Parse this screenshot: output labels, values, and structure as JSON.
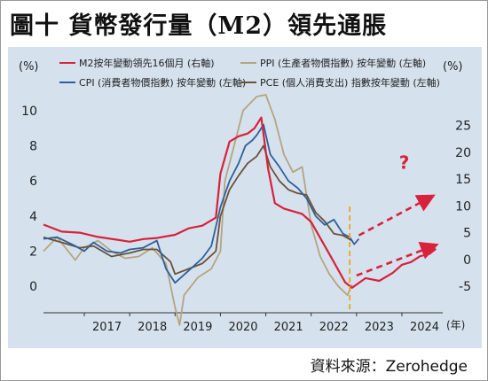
{
  "header": {
    "title": "圖十 貨幣發行量（M2）領先通脹"
  },
  "footer": {
    "source": "資料來源：Zerohedge"
  },
  "colors": {
    "panel_bg": "#d5e2ee",
    "m2": "#d8213a",
    "ppi": "#b5a47e",
    "cpi": "#2f5f9a",
    "pce": "#6b5138",
    "annotation": "#d8213a",
    "marker_line": "#f0a020"
  },
  "chart_data": {
    "type": "line",
    "left_unit": "(%)",
    "right_unit": "(%)",
    "x_unit": "(年)",
    "x_ticks": [
      "2017",
      "2018",
      "2019",
      "2020",
      "2021",
      "2022",
      "2023",
      "2024"
    ],
    "left_ticks": [
      "0",
      "2",
      "4",
      "6",
      "8",
      "10"
    ],
    "right_ticks": [
      "-5",
      "0",
      "5",
      "10",
      "15",
      "20",
      "25"
    ],
    "xlim": [
      2016.1,
      2024.9
    ],
    "ylim_left": [
      -1.3,
      11.1
    ],
    "ylim_right": [
      -9.3,
      31.4
    ],
    "legend_position": "top",
    "series": [
      {
        "name": "M2按年變動領先16個月 (右軸)",
        "axis": "right",
        "color_key": "m2",
        "x": [
          2016.1,
          2016.5,
          2016.9,
          2017.3,
          2017.7,
          2018.0,
          2018.3,
          2018.6,
          2019.0,
          2019.3,
          2019.6,
          2019.9,
          2020.0,
          2020.2,
          2020.4,
          2020.6,
          2020.75,
          2020.9,
          2021.05,
          2021.2,
          2021.4,
          2021.6,
          2021.8,
          2022.0,
          2022.2,
          2022.4,
          2022.6,
          2022.75,
          2022.9,
          2023.2,
          2023.5,
          2023.8,
          2024.0,
          2024.2,
          2024.4,
          2024.6,
          2024.75
        ],
        "y": [
          6.5,
          5.2,
          5.0,
          4.2,
          3.7,
          3.3,
          3.8,
          4.0,
          4.6,
          5.8,
          6.3,
          7.8,
          16.0,
          22.0,
          23.0,
          23.5,
          24.5,
          26.5,
          17.0,
          10.5,
          9.5,
          9.0,
          8.5,
          7.0,
          4.0,
          1.0,
          -2.0,
          -4.3,
          -5.3,
          -3.5,
          -4.0,
          -2.5,
          -1.0,
          -0.5,
          0.6,
          1.0,
          2.0
        ]
      },
      {
        "name": "PPI (生產者物價指數) 按年變動 (左軸)",
        "axis": "left",
        "color_key": "ppi",
        "x": [
          2016.1,
          2016.4,
          2016.8,
          2017.0,
          2017.3,
          2017.6,
          2017.9,
          2018.2,
          2018.5,
          2018.8,
          2019.0,
          2019.1,
          2019.2,
          2019.5,
          2019.8,
          2020.0,
          2020.1,
          2020.3,
          2020.5,
          2020.8,
          2021.0,
          2021.2,
          2021.4,
          2021.6,
          2021.8,
          2022.0,
          2022.2,
          2022.4,
          2022.6,
          2022.8,
          2022.9
        ],
        "y": [
          2.0,
          2.8,
          1.5,
          2.2,
          2.6,
          2.0,
          1.6,
          1.7,
          2.2,
          1.3,
          -1.2,
          -2.2,
          -0.5,
          0.5,
          1.0,
          2.0,
          6.0,
          8.0,
          10.0,
          10.8,
          10.9,
          9.5,
          7.5,
          6.5,
          6.8,
          3.5,
          1.7,
          0.7,
          0.0,
          -0.5,
          0.1
        ]
      },
      {
        "name": "CPI (消費者物價指數) 按年變動 (左軸)",
        "axis": "left",
        "color_key": "cpi",
        "x": [
          2016.1,
          2016.4,
          2016.8,
          2017.0,
          2017.2,
          2017.5,
          2017.8,
          2018.0,
          2018.3,
          2018.6,
          2018.8,
          2019.0,
          2019.3,
          2019.6,
          2019.8,
          2020.0,
          2020.2,
          2020.4,
          2020.55,
          2020.7,
          2020.8,
          2020.95,
          2021.1,
          2021.3,
          2021.5,
          2021.7,
          2021.9,
          2022.1,
          2022.3,
          2022.5,
          2022.7,
          2022.85,
          2022.95,
          2023.05
        ],
        "y": [
          2.7,
          2.8,
          2.3,
          2.0,
          2.5,
          2.0,
          1.9,
          2.1,
          2.2,
          2.6,
          1.0,
          0.2,
          0.9,
          1.6,
          2.3,
          4.5,
          6.0,
          7.0,
          8.0,
          8.3,
          8.6,
          9.2,
          7.5,
          6.8,
          6.0,
          5.6,
          5.0,
          4.0,
          3.5,
          3.8,
          3.0,
          2.8,
          2.4,
          2.7
        ]
      },
      {
        "name": "PCE (個人消費支出) 指數按年變動 (左軸)",
        "axis": "left",
        "color_key": "pce",
        "x": [
          2016.1,
          2016.5,
          2016.9,
          2017.2,
          2017.6,
          2018.0,
          2018.3,
          2018.6,
          2018.9,
          2019.0,
          2019.3,
          2019.6,
          2019.9,
          2020.0,
          2020.2,
          2020.4,
          2020.6,
          2020.8,
          2020.95,
          2021.1,
          2021.3,
          2021.5,
          2021.7,
          2021.9,
          2022.1,
          2022.3,
          2022.5,
          2022.7,
          2022.9
        ],
        "y": [
          2.8,
          2.5,
          2.2,
          2.3,
          1.7,
          1.9,
          2.1,
          2.1,
          1.4,
          0.7,
          1.0,
          1.3,
          2.0,
          4.0,
          5.5,
          6.3,
          7.0,
          7.4,
          8.0,
          6.8,
          6.0,
          5.5,
          5.3,
          5.2,
          4.2,
          3.7,
          3.0,
          2.9,
          2.6
        ]
      }
    ],
    "annotations": {
      "question_mark": "?",
      "event_x": 2022.85
    }
  }
}
